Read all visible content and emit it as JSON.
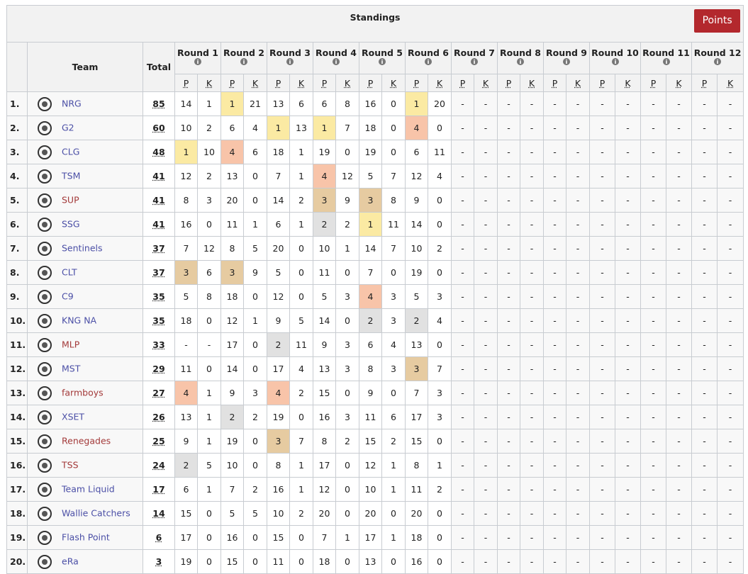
{
  "title": "Standings",
  "button": "Points",
  "columns": {
    "team": "Team",
    "total": "Total"
  },
  "rounds": [
    "Round 1",
    "Round 2",
    "Round 3",
    "Round 4",
    "Round 5",
    "Round 6",
    "Round 7",
    "Round 8",
    "Round 9",
    "Round 10",
    "Round 11",
    "Round 12"
  ],
  "sub_headers": [
    "P",
    "K"
  ],
  "place_colors": {
    "1": "#fbeaa3",
    "2": "#e1e1e1",
    "3": "#e6cba1",
    "4": "#f8c4a9"
  },
  "rows": [
    {
      "rank": "1.",
      "team": "NRG",
      "color": "#4b4fa6",
      "total": 85,
      "cells": [
        14,
        1,
        1,
        21,
        13,
        6,
        6,
        8,
        16,
        0,
        1,
        20,
        "-",
        "-",
        "-",
        "-",
        "-",
        "-",
        "-",
        "-",
        "-",
        "-",
        "-",
        "-"
      ]
    },
    {
      "rank": "2.",
      "team": "G2",
      "color": "#4b4fa6",
      "total": 60,
      "cells": [
        10,
        2,
        6,
        4,
        1,
        13,
        1,
        7,
        18,
        0,
        4,
        0,
        "-",
        "-",
        "-",
        "-",
        "-",
        "-",
        "-",
        "-",
        "-",
        "-",
        "-",
        "-"
      ]
    },
    {
      "rank": "3.",
      "team": "CLG",
      "color": "#4b4fa6",
      "total": 48,
      "cells": [
        1,
        10,
        4,
        6,
        18,
        1,
        19,
        0,
        19,
        0,
        6,
        11,
        "-",
        "-",
        "-",
        "-",
        "-",
        "-",
        "-",
        "-",
        "-",
        "-",
        "-",
        "-"
      ]
    },
    {
      "rank": "4.",
      "team": "TSM",
      "color": "#4b4fa6",
      "total": 41,
      "cells": [
        12,
        2,
        13,
        0,
        7,
        1,
        4,
        12,
        5,
        7,
        12,
        4,
        "-",
        "-",
        "-",
        "-",
        "-",
        "-",
        "-",
        "-",
        "-",
        "-",
        "-",
        "-"
      ]
    },
    {
      "rank": "5.",
      "team": "SUP",
      "color": "#a33a3a",
      "total": 41,
      "cells": [
        8,
        3,
        20,
        0,
        14,
        2,
        3,
        9,
        3,
        8,
        9,
        0,
        "-",
        "-",
        "-",
        "-",
        "-",
        "-",
        "-",
        "-",
        "-",
        "-",
        "-",
        "-"
      ]
    },
    {
      "rank": "6.",
      "team": "SSG",
      "color": "#4b4fa6",
      "total": 41,
      "cells": [
        16,
        0,
        11,
        1,
        6,
        1,
        2,
        2,
        1,
        11,
        14,
        0,
        "-",
        "-",
        "-",
        "-",
        "-",
        "-",
        "-",
        "-",
        "-",
        "-",
        "-",
        "-"
      ]
    },
    {
      "rank": "7.",
      "team": "Sentinels",
      "color": "#4b4fa6",
      "total": 37,
      "cells": [
        7,
        12,
        8,
        5,
        20,
        0,
        10,
        1,
        14,
        7,
        10,
        2,
        "-",
        "-",
        "-",
        "-",
        "-",
        "-",
        "-",
        "-",
        "-",
        "-",
        "-",
        "-"
      ]
    },
    {
      "rank": "8.",
      "team": "CLT",
      "color": "#4b4fa6",
      "total": 37,
      "cells": [
        3,
        6,
        3,
        9,
        5,
        0,
        11,
        0,
        7,
        0,
        19,
        0,
        "-",
        "-",
        "-",
        "-",
        "-",
        "-",
        "-",
        "-",
        "-",
        "-",
        "-",
        "-"
      ]
    },
    {
      "rank": "9.",
      "team": "C9",
      "color": "#4b4fa6",
      "total": 35,
      "cells": [
        5,
        8,
        18,
        0,
        12,
        0,
        5,
        3,
        4,
        3,
        5,
        3,
        "-",
        "-",
        "-",
        "-",
        "-",
        "-",
        "-",
        "-",
        "-",
        "-",
        "-",
        "-"
      ]
    },
    {
      "rank": "10.",
      "team": "KNG NA",
      "color": "#4b4fa6",
      "total": 35,
      "cells": [
        18,
        0,
        12,
        1,
        9,
        5,
        14,
        0,
        2,
        3,
        2,
        4,
        "-",
        "-",
        "-",
        "-",
        "-",
        "-",
        "-",
        "-",
        "-",
        "-",
        "-",
        "-"
      ]
    },
    {
      "rank": "11.",
      "team": "MLP",
      "color": "#a33a3a",
      "total": 33,
      "cells": [
        "-",
        "-",
        17,
        0,
        2,
        11,
        9,
        3,
        6,
        4,
        13,
        0,
        "-",
        "-",
        "-",
        "-",
        "-",
        "-",
        "-",
        "-",
        "-",
        "-",
        "-",
        "-"
      ]
    },
    {
      "rank": "12.",
      "team": "MST",
      "color": "#4b4fa6",
      "total": 29,
      "cells": [
        11,
        0,
        14,
        0,
        17,
        4,
        13,
        3,
        8,
        3,
        3,
        7,
        "-",
        "-",
        "-",
        "-",
        "-",
        "-",
        "-",
        "-",
        "-",
        "-",
        "-",
        "-"
      ]
    },
    {
      "rank": "13.",
      "team": "farmboys",
      "color": "#a33a3a",
      "total": 27,
      "cells": [
        4,
        1,
        9,
        3,
        4,
        2,
        15,
        0,
        9,
        0,
        7,
        3,
        "-",
        "-",
        "-",
        "-",
        "-",
        "-",
        "-",
        "-",
        "-",
        "-",
        "-",
        "-"
      ]
    },
    {
      "rank": "14.",
      "team": "XSET",
      "color": "#4b4fa6",
      "total": 26,
      "cells": [
        13,
        1,
        2,
        2,
        19,
        0,
        16,
        3,
        11,
        6,
        17,
        3,
        "-",
        "-",
        "-",
        "-",
        "-",
        "-",
        "-",
        "-",
        "-",
        "-",
        "-",
        "-"
      ]
    },
    {
      "rank": "15.",
      "team": "Renegades",
      "color": "#a33a3a",
      "total": 25,
      "cells": [
        9,
        1,
        19,
        0,
        3,
        7,
        8,
        2,
        15,
        2,
        15,
        0,
        "-",
        "-",
        "-",
        "-",
        "-",
        "-",
        "-",
        "-",
        "-",
        "-",
        "-",
        "-"
      ]
    },
    {
      "rank": "16.",
      "team": "TSS",
      "color": "#a33a3a",
      "total": 24,
      "cells": [
        2,
        5,
        10,
        0,
        8,
        1,
        17,
        0,
        12,
        1,
        8,
        1,
        "-",
        "-",
        "-",
        "-",
        "-",
        "-",
        "-",
        "-",
        "-",
        "-",
        "-",
        "-"
      ]
    },
    {
      "rank": "17.",
      "team": "Team Liquid",
      "color": "#4b4fa6",
      "total": 17,
      "cells": [
        6,
        1,
        7,
        2,
        16,
        1,
        12,
        0,
        10,
        1,
        11,
        2,
        "-",
        "-",
        "-",
        "-",
        "-",
        "-",
        "-",
        "-",
        "-",
        "-",
        "-",
        "-"
      ]
    },
    {
      "rank": "18.",
      "team": "Wallie Catchers",
      "color": "#4b4fa6",
      "total": 14,
      "cells": [
        15,
        0,
        5,
        5,
        10,
        2,
        20,
        0,
        20,
        0,
        20,
        0,
        "-",
        "-",
        "-",
        "-",
        "-",
        "-",
        "-",
        "-",
        "-",
        "-",
        "-",
        "-"
      ]
    },
    {
      "rank": "19.",
      "team": "Flash Point",
      "color": "#4b4fa6",
      "total": 6,
      "cells": [
        17,
        0,
        16,
        0,
        15,
        0,
        7,
        1,
        17,
        1,
        18,
        0,
        "-",
        "-",
        "-",
        "-",
        "-",
        "-",
        "-",
        "-",
        "-",
        "-",
        "-",
        "-"
      ]
    },
    {
      "rank": "20.",
      "team": "eRa",
      "color": "#4b4fa6",
      "total": 3,
      "cells": [
        19,
        0,
        15,
        0,
        11,
        0,
        18,
        0,
        13,
        0,
        16,
        0,
        "-",
        "-",
        "-",
        "-",
        "-",
        "-",
        "-",
        "-",
        "-",
        "-",
        "-",
        "-"
      ]
    }
  ]
}
